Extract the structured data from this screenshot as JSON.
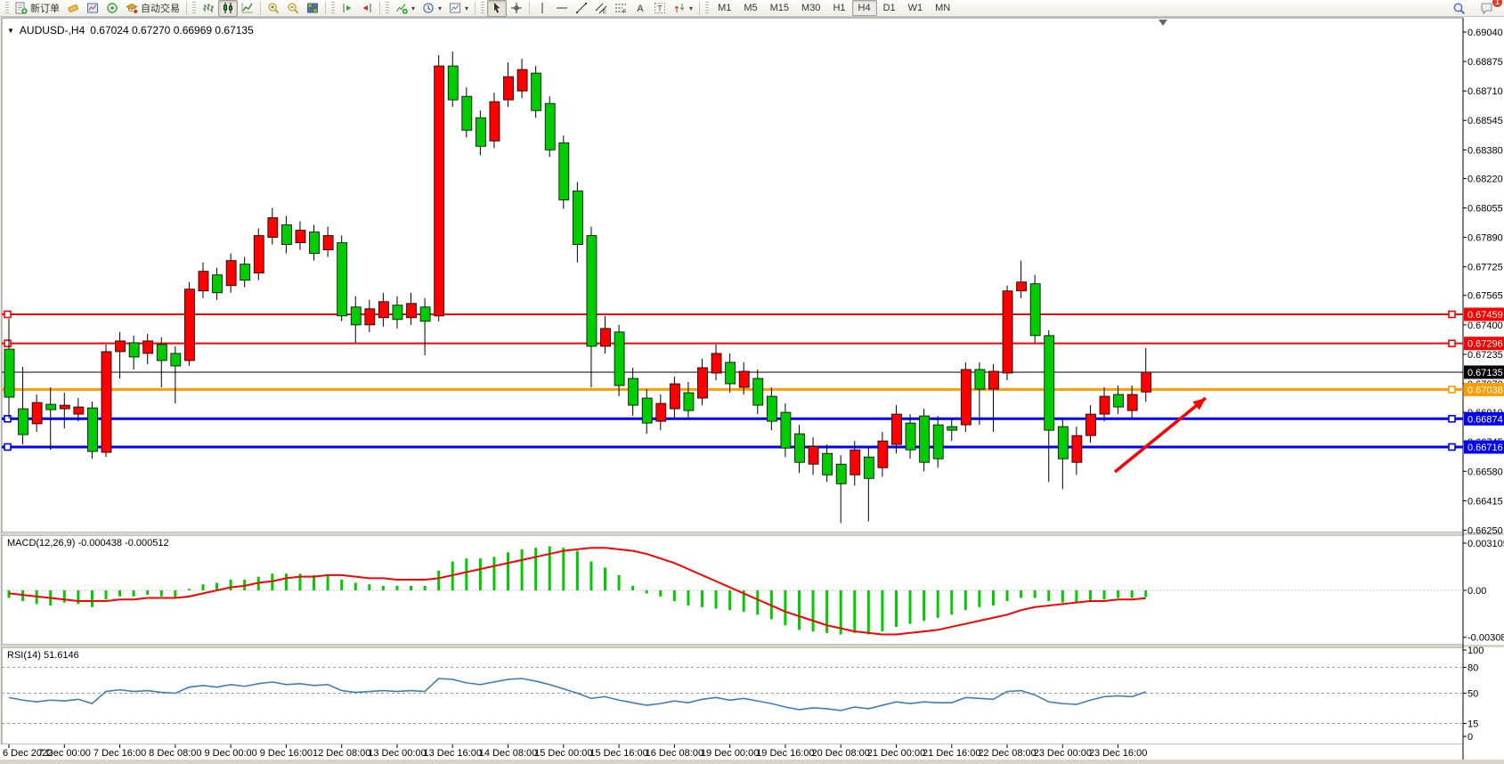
{
  "toolbar": {
    "new_order_label": "新订单",
    "autotrading_label": "自动交易",
    "timeframes": [
      "M1",
      "M5",
      "M15",
      "M30",
      "H1",
      "H4",
      "D1",
      "W1",
      "MN"
    ],
    "active_timeframe": "H4",
    "notification_count": "1",
    "icon_names": [
      "new-order-icon",
      "eraser-icon",
      "chart-window-icon",
      "signal-icon",
      "autotrading-cap-icon",
      "bar-chart-icon",
      "candlestick-icon",
      "line-chart-icon",
      "zoom-in-icon",
      "zoom-out-icon",
      "tile-windows-icon",
      "autoscroll-icon",
      "chart-shift-icon",
      "add-indicator-icon",
      "periods-clock-icon",
      "template-icon",
      "cursor-icon",
      "crosshair-icon",
      "vline-icon",
      "hline-icon",
      "trendline-icon",
      "channel-icon",
      "fibonacci-icon",
      "text-icon",
      "label-icon",
      "arrows-icon",
      "search-icon",
      "chat-icon"
    ]
  },
  "chart": {
    "title_symbol": "AUDUSD-,H4",
    "title_ohlc": "0.67024 0.67270 0.66969 0.67135",
    "macd_label": "MACD(12,26,9) -0.000438 -0.000512",
    "rsi_label": "RSI(14) 51.6146",
    "price_ticks": [
      "0.69040",
      "0.68875",
      "0.68710",
      "0.68545",
      "0.68380",
      "0.68220",
      "0.68055",
      "0.67890",
      "0.67725",
      "0.67565",
      "0.67400",
      "0.67235",
      "0.67070",
      "0.66910",
      "0.66745",
      "0.66580",
      "0.66415",
      "0.66250"
    ],
    "macd_ticks": [
      "0.003105",
      "0.00",
      "-0.003089"
    ],
    "rsi_ticks": [
      "100",
      "80",
      "50",
      "15",
      "0"
    ],
    "time_labels": [
      "6 Dec 2022",
      "7 Dec 00:00",
      "7 Dec 16:00",
      "8 Dec 08:00",
      "9 Dec 00:00",
      "9 Dec 16:00",
      "12 Dec 08:00",
      "13 Dec 00:00",
      "13 Dec 16:00",
      "14 Dec 08:00",
      "15 Dec 00:00",
      "15 Dec 16:00",
      "16 Dec 08:00",
      "19 Dec 00:00",
      "19 Dec 16:00",
      "20 Dec 08:00",
      "21 Dec 00:00",
      "21 Dec 16:00",
      "22 Dec 08:00",
      "23 Dec 00:00",
      "23 Dec 16:00"
    ]
  },
  "chart_data": {
    "type": "candlestick",
    "symbol": "AUDUSD",
    "period": "H4",
    "title": "AUDUSD-,H4",
    "ohlc_current": {
      "open": 0.67024,
      "high": 0.6727,
      "low": 0.66969,
      "close": 0.67135
    },
    "up_color": "#FF0000",
    "down_color": "#00CC00",
    "y_axis": {
      "min": 0.6625,
      "max": 0.6904
    },
    "candle_columns": [
      "body_top",
      "body_bottom",
      "high",
      "low",
      "is_up"
    ],
    "candles": [
      [
        0.67264,
        0.66995,
        0.67434,
        0.66876,
        0
      ],
      [
        0.6693,
        0.66785,
        0.67165,
        0.6673,
        0
      ],
      [
        0.66965,
        0.66846,
        0.6701,
        0.668,
        1
      ],
      [
        0.66955,
        0.66925,
        0.6705,
        0.667,
        0
      ],
      [
        0.6695,
        0.6693,
        0.6702,
        0.6682,
        1
      ],
      [
        0.6694,
        0.669,
        0.6699,
        0.6686,
        1
      ],
      [
        0.66935,
        0.66691,
        0.6697,
        0.6665,
        0
      ],
      [
        0.6725,
        0.66686,
        0.6729,
        0.6666,
        1
      ],
      [
        0.6731,
        0.6725,
        0.6736,
        0.671,
        1
      ],
      [
        0.673,
        0.6722,
        0.6734,
        0.6715,
        0
      ],
      [
        0.6731,
        0.6724,
        0.6735,
        0.6718,
        1
      ],
      [
        0.6729,
        0.672,
        0.6733,
        0.6705,
        0
      ],
      [
        0.6724,
        0.6717,
        0.6728,
        0.6696,
        0
      ],
      [
        0.676,
        0.672,
        0.6764,
        0.6717,
        1
      ],
      [
        0.677,
        0.6759,
        0.6775,
        0.6755,
        1
      ],
      [
        0.6768,
        0.6758,
        0.6772,
        0.6754,
        0
      ],
      [
        0.6776,
        0.6762,
        0.678,
        0.6758,
        1
      ],
      [
        0.6774,
        0.6765,
        0.6778,
        0.6761,
        0
      ],
      [
        0.679,
        0.6769,
        0.6794,
        0.6765,
        1
      ],
      [
        0.68,
        0.6789,
        0.68055,
        0.6785,
        1
      ],
      [
        0.6796,
        0.6785,
        0.6801,
        0.678,
        0
      ],
      [
        0.6793,
        0.6786,
        0.6798,
        0.6782,
        1
      ],
      [
        0.6792,
        0.678,
        0.6796,
        0.6776,
        0
      ],
      [
        0.679,
        0.6782,
        0.6795,
        0.6778,
        1
      ],
      [
        0.6786,
        0.6745,
        0.679,
        0.6742,
        0
      ],
      [
        0.675,
        0.674,
        0.6756,
        0.673,
        0
      ],
      [
        0.6749,
        0.674,
        0.6754,
        0.6736,
        1
      ],
      [
        0.6753,
        0.6744,
        0.6758,
        0.6739,
        1
      ],
      [
        0.6751,
        0.6743,
        0.6756,
        0.6738,
        0
      ],
      [
        0.6752,
        0.6744,
        0.6758,
        0.674,
        1
      ],
      [
        0.675,
        0.6742,
        0.6755,
        0.6723,
        0
      ],
      [
        0.6885,
        0.6745,
        0.6891,
        0.6742,
        1
      ],
      [
        0.6885,
        0.6866,
        0.6893,
        0.6862,
        0
      ],
      [
        0.6868,
        0.6849,
        0.6873,
        0.6845,
        0
      ],
      [
        0.6856,
        0.684,
        0.686,
        0.6835,
        0
      ],
      [
        0.6865,
        0.6843,
        0.687,
        0.6839,
        1
      ],
      [
        0.6879,
        0.6866,
        0.6887,
        0.6862,
        1
      ],
      [
        0.6883,
        0.6871,
        0.6889,
        0.6867,
        1
      ],
      [
        0.6881,
        0.686,
        0.6885,
        0.6856,
        0
      ],
      [
        0.6864,
        0.6838,
        0.6868,
        0.6834,
        0
      ],
      [
        0.6842,
        0.681,
        0.6846,
        0.6805,
        0
      ],
      [
        0.6815,
        0.6785,
        0.682,
        0.6775,
        0
      ],
      [
        0.679,
        0.6728,
        0.6795,
        0.6705,
        0
      ],
      [
        0.6738,
        0.6728,
        0.6745,
        0.6724,
        1
      ],
      [
        0.6736,
        0.6706,
        0.674,
        0.67,
        0
      ],
      [
        0.671,
        0.6695,
        0.6716,
        0.6689,
        0
      ],
      [
        0.6699,
        0.6685,
        0.6704,
        0.6679,
        0
      ],
      [
        0.6696,
        0.6686,
        0.6701,
        0.6681,
        1
      ],
      [
        0.6707,
        0.6693,
        0.6711,
        0.6688,
        1
      ],
      [
        0.6702,
        0.6692,
        0.6708,
        0.6687,
        0
      ],
      [
        0.6716,
        0.6699,
        0.6721,
        0.6695,
        1
      ],
      [
        0.6724,
        0.6713,
        0.6729,
        0.6709,
        1
      ],
      [
        0.6719,
        0.6707,
        0.6724,
        0.6702,
        0
      ],
      [
        0.6714,
        0.6705,
        0.6719,
        0.6701,
        1
      ],
      [
        0.671,
        0.6695,
        0.6715,
        0.669,
        0
      ],
      [
        0.67,
        0.6686,
        0.6705,
        0.6681,
        0
      ],
      [
        0.6691,
        0.6671,
        0.6696,
        0.6666,
        0
      ],
      [
        0.6679,
        0.6663,
        0.6684,
        0.6657,
        0
      ],
      [
        0.6672,
        0.6662,
        0.6677,
        0.6656,
        1
      ],
      [
        0.6668,
        0.6656,
        0.6673,
        0.6652,
        0
      ],
      [
        0.6662,
        0.6651,
        0.6667,
        0.6629,
        0
      ],
      [
        0.667,
        0.6656,
        0.6675,
        0.665,
        1
      ],
      [
        0.6666,
        0.6654,
        0.6671,
        0.663,
        0
      ],
      [
        0.6675,
        0.666,
        0.668,
        0.6655,
        1
      ],
      [
        0.669,
        0.6673,
        0.6695,
        0.6668,
        1
      ],
      [
        0.6685,
        0.667,
        0.669,
        0.6665,
        0
      ],
      [
        0.6689,
        0.6663,
        0.6693,
        0.6658,
        0
      ],
      [
        0.6684,
        0.6665,
        0.6689,
        0.666,
        0
      ],
      [
        0.6683,
        0.6681,
        0.6688,
        0.6675,
        0
      ],
      [
        0.6715,
        0.6684,
        0.6719,
        0.668,
        1
      ],
      [
        0.6715,
        0.6704,
        0.6719,
        0.6684,
        0
      ],
      [
        0.6714,
        0.6704,
        0.6718,
        0.668,
        1
      ],
      [
        0.6759,
        0.6713,
        0.6762,
        0.6709,
        1
      ],
      [
        0.6764,
        0.6759,
        0.6776,
        0.6755,
        1
      ],
      [
        0.6763,
        0.6734,
        0.6768,
        0.673,
        0
      ],
      [
        0.6734,
        0.6681,
        0.6737,
        0.6652,
        0
      ],
      [
        0.6683,
        0.6665,
        0.6687,
        0.6648,
        0
      ],
      [
        0.6678,
        0.6663,
        0.6683,
        0.6656,
        1
      ],
      [
        0.669,
        0.6678,
        0.6695,
        0.6674,
        1
      ],
      [
        0.67,
        0.669,
        0.6705,
        0.6686,
        1
      ],
      [
        0.6701,
        0.6694,
        0.6706,
        0.669,
        0
      ],
      [
        0.6701,
        0.6692,
        0.6706,
        0.6688,
        1
      ],
      [
        0.67135,
        0.67024,
        0.6727,
        0.66969,
        1
      ]
    ],
    "levels": [
      {
        "price": 0.67459,
        "color": "#FF0000",
        "width": 2,
        "anchor": true
      },
      {
        "price": 0.67296,
        "color": "#FF0000",
        "width": 2,
        "anchor": true
      },
      {
        "price": 0.67135,
        "color": "#000000",
        "width": 1,
        "anchor": false,
        "current": true
      },
      {
        "price": 0.67038,
        "color": "#FF9C00",
        "width": 3,
        "anchor": true
      },
      {
        "price": 0.66874,
        "color": "#0000FF",
        "width": 3,
        "anchor": true
      },
      {
        "price": 0.66716,
        "color": "#0000FF",
        "width": 3,
        "anchor": true
      }
    ],
    "indicators": {
      "macd": {
        "params": "12,26,9",
        "value": -0.000438,
        "signal_value": -0.000512,
        "range": [
          -0.003089,
          0.003105
        ],
        "histogram_color": "#00CC00",
        "signal_color": "#FF0000",
        "histogram": [
          -0.0005,
          -0.0007,
          -0.0009,
          -0.001,
          -0.0008,
          -0.0009,
          -0.0011,
          -0.0006,
          -0.0004,
          -0.0004,
          -0.0003,
          -0.0004,
          -0.0005,
          0.0001,
          0.0004,
          0.0005,
          0.0007,
          0.0007,
          0.0009,
          0.0011,
          0.0011,
          0.0011,
          0.001,
          0.001,
          0.0007,
          0.0005,
          0.0004,
          0.0003,
          0.0003,
          0.0003,
          0.0003,
          0.0013,
          0.0019,
          0.0021,
          0.0021,
          0.0022,
          0.0025,
          0.0027,
          0.0028,
          0.0029,
          0.0028,
          0.0026,
          0.0019,
          0.0015,
          0.001,
          0.0003,
          -0.0002,
          -0.0004,
          -0.0007,
          -0.001,
          -0.0011,
          -0.0012,
          -0.0013,
          -0.0014,
          -0.0016,
          -0.0019,
          -0.0023,
          -0.0026,
          -0.0027,
          -0.0028,
          -0.0029,
          -0.0028,
          -0.0029,
          -0.0027,
          -0.0024,
          -0.0022,
          -0.002,
          -0.0018,
          -0.0016,
          -0.0013,
          -0.0011,
          -0.001,
          -0.0007,
          -0.0005,
          -0.0005,
          -0.0007,
          -0.0008,
          -0.0008,
          -0.0007,
          -0.0006,
          -0.0005,
          -0.0005,
          -0.000438
        ],
        "signal": [
          -0.0002,
          -0.0003,
          -0.0004,
          -0.0005,
          -0.0006,
          -0.0007,
          -0.0007,
          -0.0007,
          -0.0006,
          -0.0006,
          -0.0005,
          -0.0005,
          -0.0005,
          -0.0004,
          -0.0002,
          0.0,
          0.0002,
          0.0003,
          0.0005,
          0.0006,
          0.0008,
          0.0009,
          0.0009,
          0.001,
          0.001,
          0.0009,
          0.0008,
          0.0008,
          0.0007,
          0.0007,
          0.0007,
          0.0008,
          0.001,
          0.0012,
          0.0014,
          0.0016,
          0.0018,
          0.002,
          0.0022,
          0.0024,
          0.0026,
          0.0027,
          0.0028,
          0.0028,
          0.0027,
          0.0026,
          0.0024,
          0.0021,
          0.0018,
          0.0014,
          0.001,
          0.0006,
          0.0002,
          -0.0002,
          -0.0006,
          -0.001,
          -0.0014,
          -0.0017,
          -0.002,
          -0.0023,
          -0.0025,
          -0.0027,
          -0.0028,
          -0.0029,
          -0.0029,
          -0.0028,
          -0.0027,
          -0.0026,
          -0.0024,
          -0.0022,
          -0.002,
          -0.0018,
          -0.0016,
          -0.0013,
          -0.0011,
          -0.001,
          -0.0009,
          -0.0008,
          -0.0007,
          -0.0007,
          -0.0006,
          -0.0006,
          -0.000512
        ]
      },
      "rsi": {
        "params": "14",
        "value": 51.6146,
        "range": [
          0,
          100
        ],
        "levels": [
          80,
          50,
          15
        ],
        "line_color": "#3C7EBF",
        "values": [
          45,
          42,
          40,
          42,
          41,
          43,
          38,
          52,
          54,
          52,
          53,
          51,
          50,
          57,
          59,
          57,
          60,
          58,
          61,
          63,
          60,
          61,
          59,
          60,
          53,
          51,
          52,
          53,
          52,
          53,
          52,
          67,
          66,
          62,
          60,
          63,
          66,
          67,
          64,
          60,
          55,
          50,
          44,
          46,
          42,
          39,
          36,
          38,
          41,
          39,
          43,
          45,
          42,
          44,
          41,
          38,
          34,
          31,
          33,
          32,
          30,
          34,
          32,
          36,
          40,
          38,
          40,
          39,
          39,
          45,
          44,
          43,
          52,
          53,
          48,
          40,
          38,
          37,
          42,
          46,
          47,
          46,
          51.6146
        ]
      }
    },
    "annotation_arrow": {
      "color": "#FF0000",
      "from": [
        1252,
        530
      ],
      "to": [
        1354,
        447
      ]
    }
  }
}
